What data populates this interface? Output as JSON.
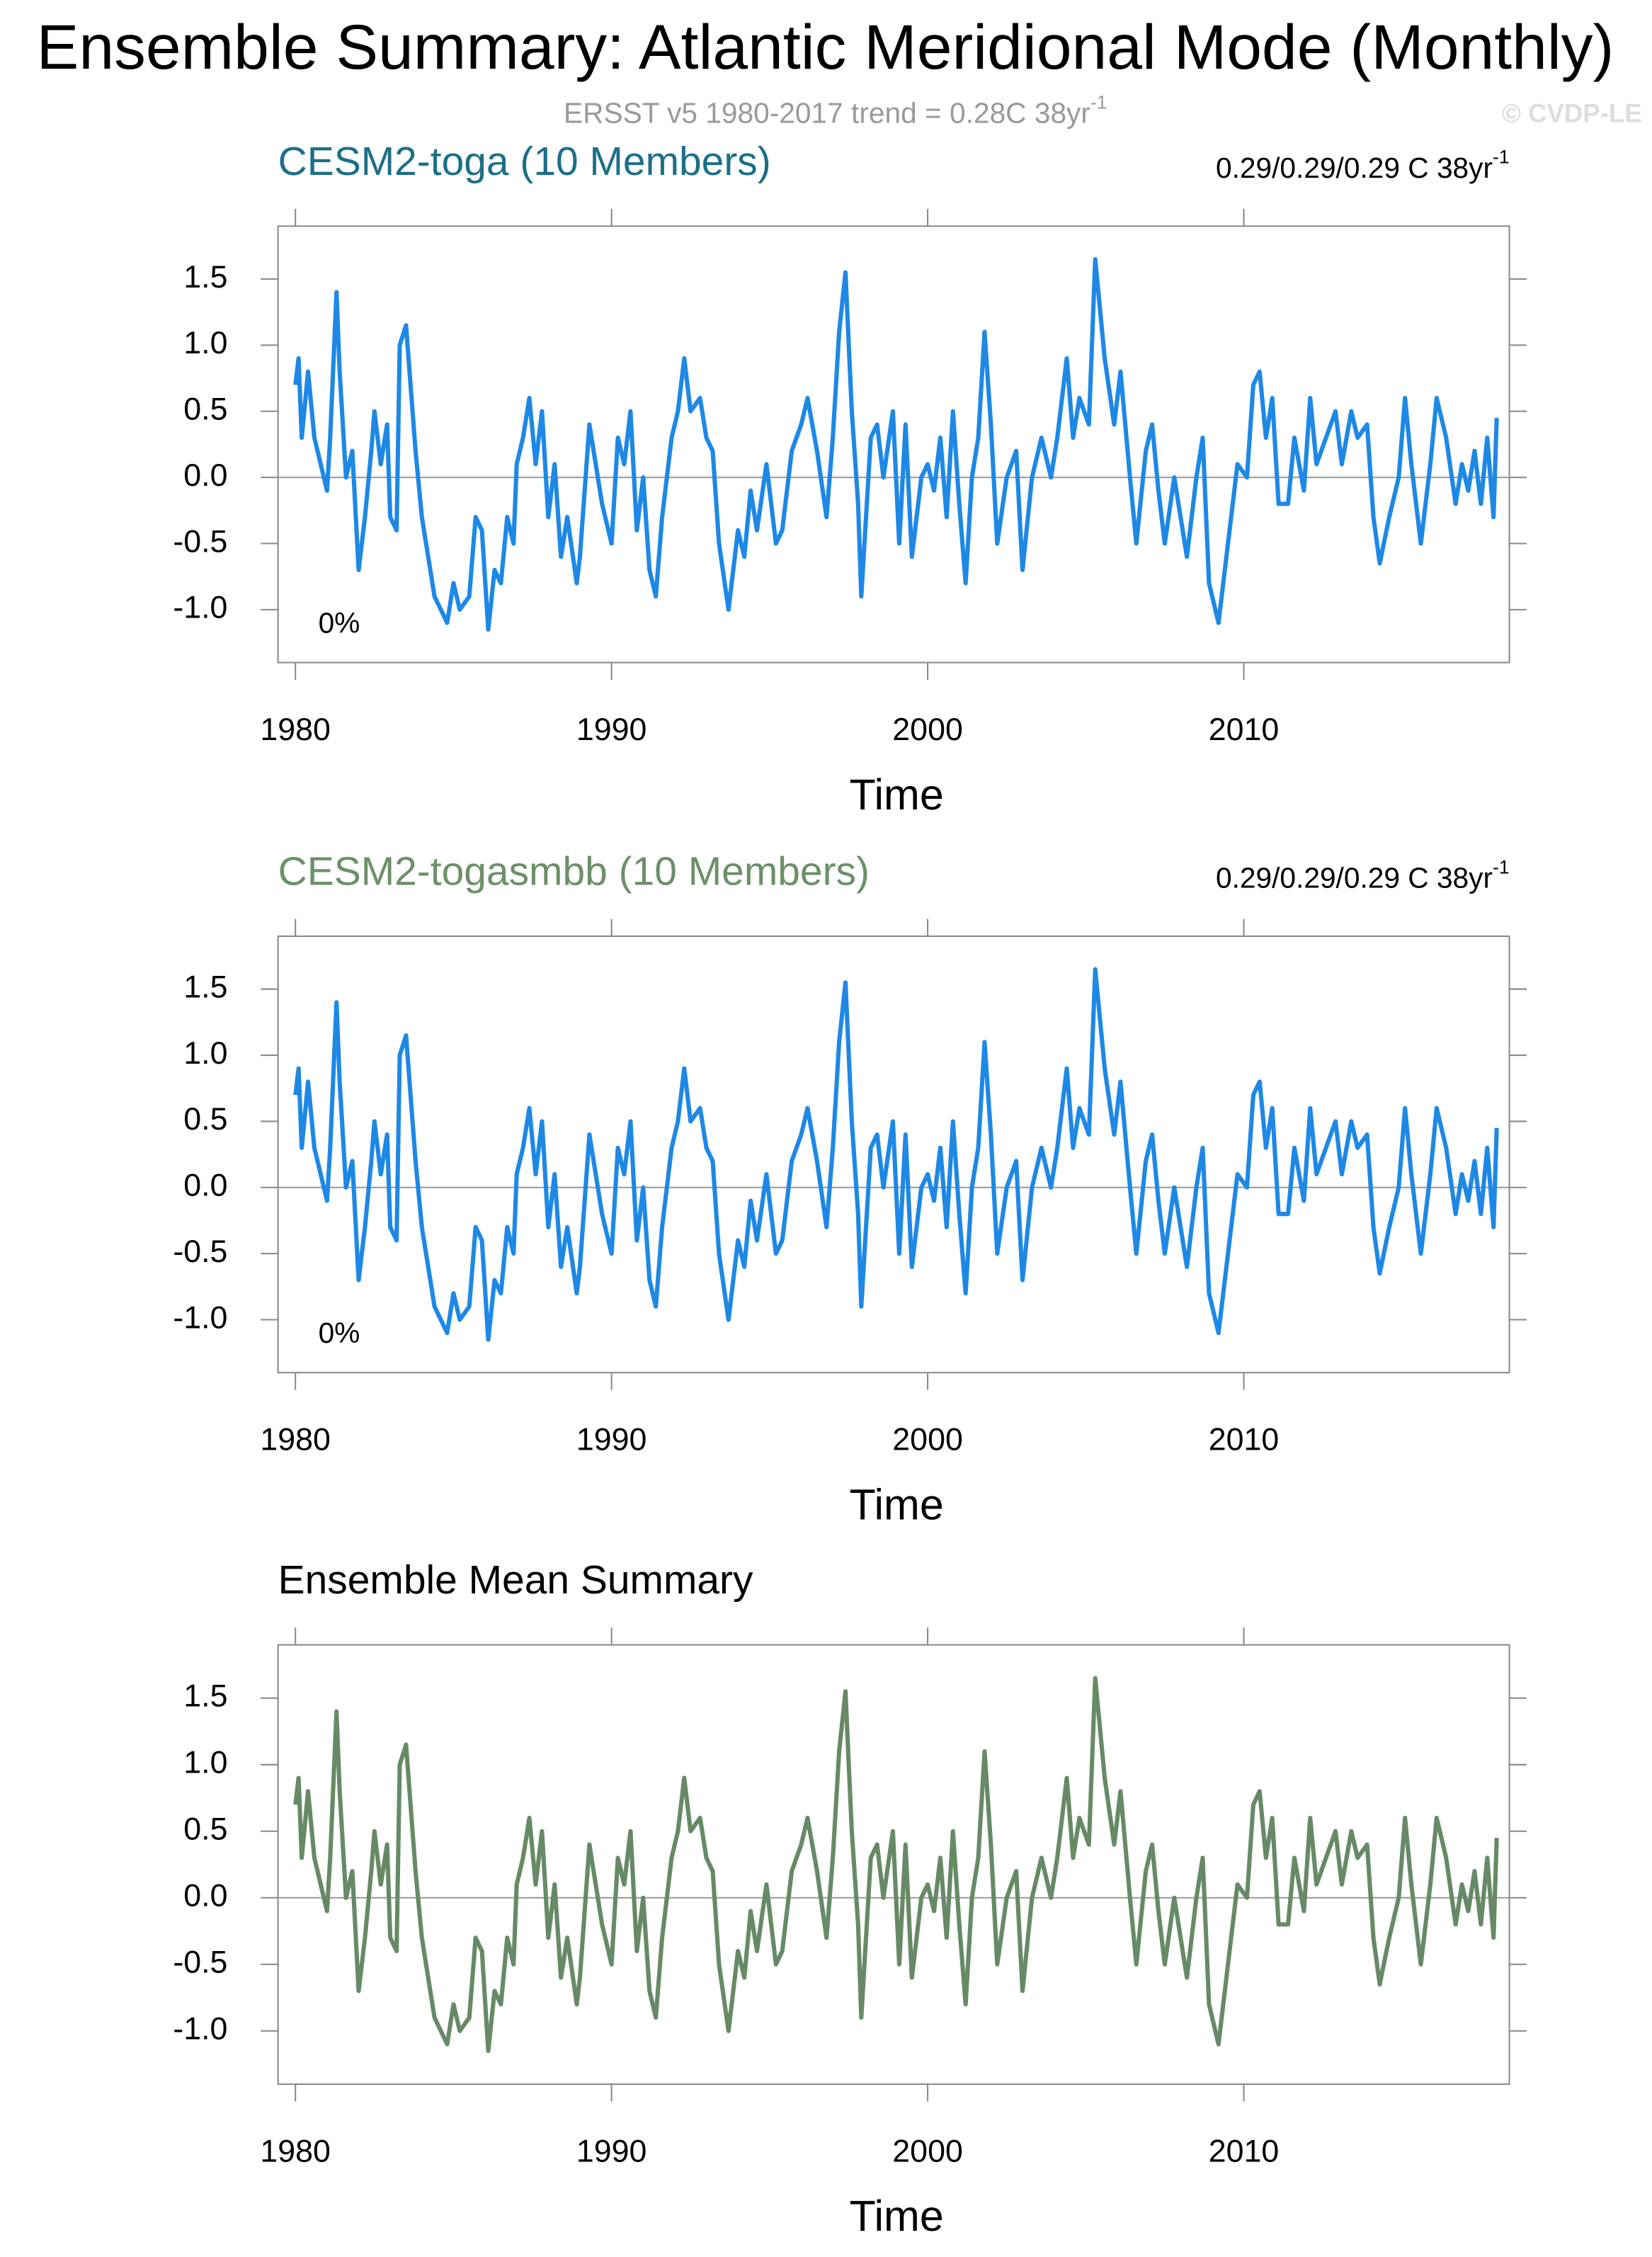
{
  "title": "Ensemble Summary: Atlantic Meridional Mode (Monthly)",
  "subtitle": {
    "text": "ERSST v5 1980-2017 trend = 0.28C 38yr",
    "sup": "-1"
  },
  "watermark": "© CVDP-LE",
  "chart_data": [
    {
      "type": "line",
      "title": "CESM2-toga (10 Members)",
      "title_color": "#1b6f88",
      "trend": {
        "text": "0.29/0.29/0.29 C 38yr",
        "sup": "-1"
      },
      "annotation": "0%",
      "x_label": "Time",
      "color": "#1e88e5",
      "reference_line": 0,
      "xlim": [
        1979.45,
        2018.4
      ],
      "xticks": [
        1980,
        1990,
        2000,
        2010
      ],
      "ylim": [
        -1.4,
        1.9
      ],
      "yticks": [
        {
          "value": -1,
          "label": "-1.0"
        },
        -0.5,
        {
          "value": 0,
          "label": "0.0"
        },
        0.5,
        {
          "value": 1,
          "label": "1.0"
        },
        1.5
      ],
      "x": [
        1980.0,
        1980.1,
        1980.2,
        1980.4,
        1980.6,
        1980.8,
        1981.0,
        1981.1,
        1981.3,
        1981.4,
        1981.6,
        1981.8,
        1982.0,
        1982.2,
        1982.4,
        1982.5,
        1982.7,
        1982.9,
        1983.0,
        1983.2,
        1983.3,
        1983.5,
        1983.8,
        1984.0,
        1984.2,
        1984.4,
        1984.6,
        1984.8,
        1985.0,
        1985.2,
        1985.5,
        1985.7,
        1985.9,
        1986.1,
        1986.3,
        1986.5,
        1986.7,
        1986.9,
        1987.0,
        1987.2,
        1987.4,
        1987.6,
        1987.8,
        1988.0,
        1988.2,
        1988.4,
        1988.6,
        1988.9,
        1989.0,
        1989.3,
        1989.5,
        1989.7,
        1990.0,
        1990.2,
        1990.4,
        1990.6,
        1990.8,
        1991.0,
        1991.2,
        1991.4,
        1991.6,
        1991.9,
        1992.1,
        1992.3,
        1992.5,
        1992.8,
        1993.0,
        1993.2,
        1993.4,
        1993.7,
        1994.0,
        1994.2,
        1994.4,
        1994.6,
        1994.9,
        1995.2,
        1995.4,
        1995.7,
        1996.0,
        1996.2,
        1996.5,
        1996.8,
        1997.0,
        1997.2,
        1997.4,
        1997.6,
        1997.8,
        1997.9,
        1998.2,
        1998.4,
        1998.6,
        1998.9,
        1999.1,
        1999.3,
        1999.5,
        1999.8,
        2000.0,
        2000.2,
        2000.4,
        2000.6,
        2000.8,
        2001.0,
        2001.2,
        2001.4,
        2001.6,
        2001.8,
        2002.0,
        2002.2,
        2002.5,
        2002.8,
        2003.0,
        2003.3,
        2003.6,
        2003.9,
        2004.1,
        2004.4,
        2004.6,
        2004.8,
        2005.1,
        2005.3,
        2005.6,
        2005.9,
        2006.1,
        2006.4,
        2006.6,
        2006.9,
        2007.1,
        2007.3,
        2007.5,
        2007.8,
        2008.0,
        2008.2,
        2008.5,
        2008.7,
        2008.9,
        2009.2,
        2009.5,
        2009.8,
        2010.1,
        2010.3,
        2010.5,
        2010.7,
        2010.9,
        2011.1,
        2011.4,
        2011.6,
        2011.9,
        2012.1,
        2012.3,
        2012.6,
        2012.9,
        2013.1,
        2013.4,
        2013.6,
        2013.9,
        2014.1,
        2014.3,
        2014.6,
        2014.9,
        2015.1,
        2015.3,
        2015.6,
        2015.9,
        2016.1,
        2016.4,
        2016.7,
        2016.9,
        2017.1,
        2017.3,
        2017.5,
        2017.7,
        2017.9,
        2018.0
      ],
      "values": [
        0.7,
        0.9,
        0.3,
        0.8,
        0.3,
        0.1,
        -0.1,
        0.3,
        1.4,
        0.8,
        0,
        0.2,
        -0.7,
        -0.3,
        0.2,
        0.5,
        0.1,
        0.4,
        -0.3,
        -0.4,
        1.0,
        1.15,
        0.2,
        -0.3,
        -0.6,
        -0.9,
        -1.0,
        -1.1,
        -0.8,
        -1.0,
        -0.9,
        -0.3,
        -0.4,
        -1.15,
        -0.7,
        -0.8,
        -0.3,
        -0.5,
        0.1,
        0.3,
        0.6,
        0.1,
        0.5,
        -0.3,
        0.1,
        -0.6,
        -0.3,
        -0.8,
        -0.6,
        0.4,
        0.1,
        -0.2,
        -0.5,
        0.3,
        0.1,
        0.5,
        -0.4,
        0,
        -0.7,
        -0.9,
        -0.3,
        0.3,
        0.5,
        0.9,
        0.5,
        0.6,
        0.3,
        0.2,
        -0.5,
        -1.0,
        -0.4,
        -0.6,
        -0.1,
        -0.4,
        0.1,
        -0.5,
        -0.4,
        0.2,
        0.4,
        0.6,
        0.2,
        -0.3,
        0.3,
        1.1,
        1.55,
        0.5,
        -0.2,
        -0.9,
        0.3,
        0.4,
        0,
        0.5,
        -0.5,
        0.4,
        -0.6,
        0,
        0.1,
        -0.1,
        0.3,
        -0.3,
        0.5,
        -0.2,
        -0.8,
        0,
        0.3,
        1.1,
        0.4,
        -0.5,
        0,
        0.2,
        -0.7,
        0,
        0.3,
        0,
        0.3,
        0.9,
        0.3,
        0.6,
        0.4,
        1.65,
        0.9,
        0.4,
        0.8,
        0,
        -0.5,
        0.2,
        0.4,
        -0.1,
        -0.5,
        0,
        -0.3,
        -0.6,
        0,
        0.3,
        -0.8,
        -1.1,
        -0.5,
        0.1,
        0,
        0.7,
        0.8,
        0.3,
        0.6,
        -0.2,
        -0.2,
        0.3,
        -0.1,
        0.6,
        0.1,
        0.3,
        0.5,
        0.1,
        0.5,
        0.3,
        0.4,
        -0.3,
        -0.65,
        -0.3,
        0,
        0.6,
        0.1,
        -0.5,
        0.1,
        0.6,
        0.3,
        -0.2,
        0.1,
        -0.1,
        0.2,
        -0.2,
        0.3,
        -0.3,
        0.45
      ]
    },
    {
      "type": "line",
      "title": "CESM2-togasmbb (10 Members)",
      "title_color": "#6c9068",
      "trend": {
        "text": "0.29/0.29/0.29 C 38yr",
        "sup": "-1"
      },
      "annotation": "0%",
      "x_label": "Time",
      "color": "#1e88e5",
      "reference_line": 0,
      "xlim": [
        1979.45,
        2018.4
      ],
      "xticks": [
        1980,
        1990,
        2000,
        2010
      ],
      "ylim": [
        -1.4,
        1.9
      ],
      "yticks": [
        {
          "value": -1,
          "label": "-1.0"
        },
        -0.5,
        {
          "value": 0,
          "label": "0.0"
        },
        0.5,
        {
          "value": 1,
          "label": "1.0"
        },
        1.5
      ],
      "x": [
        1980.0,
        1980.1,
        1980.2,
        1980.4,
        1980.6,
        1980.8,
        1981.0,
        1981.1,
        1981.3,
        1981.4,
        1981.6,
        1981.8,
        1982.0,
        1982.2,
        1982.4,
        1982.5,
        1982.7,
        1982.9,
        1983.0,
        1983.2,
        1983.3,
        1983.5,
        1983.8,
        1984.0,
        1984.2,
        1984.4,
        1984.6,
        1984.8,
        1985.0,
        1985.2,
        1985.5,
        1985.7,
        1985.9,
        1986.1,
        1986.3,
        1986.5,
        1986.7,
        1986.9,
        1987.0,
        1987.2,
        1987.4,
        1987.6,
        1987.8,
        1988.0,
        1988.2,
        1988.4,
        1988.6,
        1988.9,
        1989.0,
        1989.3,
        1989.5,
        1989.7,
        1990.0,
        1990.2,
        1990.4,
        1990.6,
        1990.8,
        1991.0,
        1991.2,
        1991.4,
        1991.6,
        1991.9,
        1992.1,
        1992.3,
        1992.5,
        1992.8,
        1993.0,
        1993.2,
        1993.4,
        1993.7,
        1994.0,
        1994.2,
        1994.4,
        1994.6,
        1994.9,
        1995.2,
        1995.4,
        1995.7,
        1996.0,
        1996.2,
        1996.5,
        1996.8,
        1997.0,
        1997.2,
        1997.4,
        1997.6,
        1997.8,
        1997.9,
        1998.2,
        1998.4,
        1998.6,
        1998.9,
        1999.1,
        1999.3,
        1999.5,
        1999.8,
        2000.0,
        2000.2,
        2000.4,
        2000.6,
        2000.8,
        2001.0,
        2001.2,
        2001.4,
        2001.6,
        2001.8,
        2002.0,
        2002.2,
        2002.5,
        2002.8,
        2003.0,
        2003.3,
        2003.6,
        2003.9,
        2004.1,
        2004.4,
        2004.6,
        2004.8,
        2005.1,
        2005.3,
        2005.6,
        2005.9,
        2006.1,
        2006.4,
        2006.6,
        2006.9,
        2007.1,
        2007.3,
        2007.5,
        2007.8,
        2008.0,
        2008.2,
        2008.5,
        2008.7,
        2008.9,
        2009.2,
        2009.5,
        2009.8,
        2010.1,
        2010.3,
        2010.5,
        2010.7,
        2010.9,
        2011.1,
        2011.4,
        2011.6,
        2011.9,
        2012.1,
        2012.3,
        2012.6,
        2012.9,
        2013.1,
        2013.4,
        2013.6,
        2013.9,
        2014.1,
        2014.3,
        2014.6,
        2014.9,
        2015.1,
        2015.3,
        2015.6,
        2015.9,
        2016.1,
        2016.4,
        2016.7,
        2016.9,
        2017.1,
        2017.3,
        2017.5,
        2017.7,
        2017.9,
        2018.0
      ],
      "values": [
        0.7,
        0.9,
        0.3,
        0.8,
        0.3,
        0.1,
        -0.1,
        0.3,
        1.4,
        0.8,
        0,
        0.2,
        -0.7,
        -0.3,
        0.2,
        0.5,
        0.1,
        0.4,
        -0.3,
        -0.4,
        1.0,
        1.15,
        0.2,
        -0.3,
        -0.6,
        -0.9,
        -1.0,
        -1.1,
        -0.8,
        -1.0,
        -0.9,
        -0.3,
        -0.4,
        -1.15,
        -0.7,
        -0.8,
        -0.3,
        -0.5,
        0.1,
        0.3,
        0.6,
        0.1,
        0.5,
        -0.3,
        0.1,
        -0.6,
        -0.3,
        -0.8,
        -0.6,
        0.4,
        0.1,
        -0.2,
        -0.5,
        0.3,
        0.1,
        0.5,
        -0.4,
        0,
        -0.7,
        -0.9,
        -0.3,
        0.3,
        0.5,
        0.9,
        0.5,
        0.6,
        0.3,
        0.2,
        -0.5,
        -1.0,
        -0.4,
        -0.6,
        -0.1,
        -0.4,
        0.1,
        -0.5,
        -0.4,
        0.2,
        0.4,
        0.6,
        0.2,
        -0.3,
        0.3,
        1.1,
        1.55,
        0.5,
        -0.2,
        -0.9,
        0.3,
        0.4,
        0,
        0.5,
        -0.5,
        0.4,
        -0.6,
        0,
        0.1,
        -0.1,
        0.3,
        -0.3,
        0.5,
        -0.2,
        -0.8,
        0,
        0.3,
        1.1,
        0.4,
        -0.5,
        0,
        0.2,
        -0.7,
        0,
        0.3,
        0,
        0.3,
        0.9,
        0.3,
        0.6,
        0.4,
        1.65,
        0.9,
        0.4,
        0.8,
        0,
        -0.5,
        0.2,
        0.4,
        -0.1,
        -0.5,
        0,
        -0.3,
        -0.6,
        0,
        0.3,
        -0.8,
        -1.1,
        -0.5,
        0.1,
        0,
        0.7,
        0.8,
        0.3,
        0.6,
        -0.2,
        -0.2,
        0.3,
        -0.1,
        0.6,
        0.1,
        0.3,
        0.5,
        0.1,
        0.5,
        0.3,
        0.4,
        -0.3,
        -0.65,
        -0.3,
        0,
        0.6,
        0.1,
        -0.5,
        0.1,
        0.6,
        0.3,
        -0.2,
        0.1,
        -0.1,
        0.2,
        -0.2,
        0.3,
        -0.3,
        0.45
      ]
    },
    {
      "type": "line",
      "title": "Ensemble Mean Summary",
      "title_color": "#000000",
      "x_label": "Time",
      "color": "#678a66",
      "reference_line": 0,
      "xlim": [
        1979.45,
        2018.4
      ],
      "xticks": [
        1980,
        1990,
        2000,
        2010
      ],
      "ylim": [
        -1.4,
        1.9
      ],
      "yticks": [
        {
          "value": -1,
          "label": "-1.0"
        },
        -0.5,
        {
          "value": 0,
          "label": "0.0"
        },
        0.5,
        {
          "value": 1,
          "label": "1.0"
        },
        1.5
      ],
      "x": [
        1980.0,
        1980.1,
        1980.2,
        1980.4,
        1980.6,
        1980.8,
        1981.0,
        1981.1,
        1981.3,
        1981.4,
        1981.6,
        1981.8,
        1982.0,
        1982.2,
        1982.4,
        1982.5,
        1982.7,
        1982.9,
        1983.0,
        1983.2,
        1983.3,
        1983.5,
        1983.8,
        1984.0,
        1984.2,
        1984.4,
        1984.6,
        1984.8,
        1985.0,
        1985.2,
        1985.5,
        1985.7,
        1985.9,
        1986.1,
        1986.3,
        1986.5,
        1986.7,
        1986.9,
        1987.0,
        1987.2,
        1987.4,
        1987.6,
        1987.8,
        1988.0,
        1988.2,
        1988.4,
        1988.6,
        1988.9,
        1989.0,
        1989.3,
        1989.5,
        1989.7,
        1990.0,
        1990.2,
        1990.4,
        1990.6,
        1990.8,
        1991.0,
        1991.2,
        1991.4,
        1991.6,
        1991.9,
        1992.1,
        1992.3,
        1992.5,
        1992.8,
        1993.0,
        1993.2,
        1993.4,
        1993.7,
        1994.0,
        1994.2,
        1994.4,
        1994.6,
        1994.9,
        1995.2,
        1995.4,
        1995.7,
        1996.0,
        1996.2,
        1996.5,
        1996.8,
        1997.0,
        1997.2,
        1997.4,
        1997.6,
        1997.8,
        1997.9,
        1998.2,
        1998.4,
        1998.6,
        1998.9,
        1999.1,
        1999.3,
        1999.5,
        1999.8,
        2000.0,
        2000.2,
        2000.4,
        2000.6,
        2000.8,
        2001.0,
        2001.2,
        2001.4,
        2001.6,
        2001.8,
        2002.0,
        2002.2,
        2002.5,
        2002.8,
        2003.0,
        2003.3,
        2003.6,
        2003.9,
        2004.1,
        2004.4,
        2004.6,
        2004.8,
        2005.1,
        2005.3,
        2005.6,
        2005.9,
        2006.1,
        2006.4,
        2006.6,
        2006.9,
        2007.1,
        2007.3,
        2007.5,
        2007.8,
        2008.0,
        2008.2,
        2008.5,
        2008.7,
        2008.9,
        2009.2,
        2009.5,
        2009.8,
        2010.1,
        2010.3,
        2010.5,
        2010.7,
        2010.9,
        2011.1,
        2011.4,
        2011.6,
        2011.9,
        2012.1,
        2012.3,
        2012.6,
        2012.9,
        2013.1,
        2013.4,
        2013.6,
        2013.9,
        2014.1,
        2014.3,
        2014.6,
        2014.9,
        2015.1,
        2015.3,
        2015.6,
        2015.9,
        2016.1,
        2016.4,
        2016.7,
        2016.9,
        2017.1,
        2017.3,
        2017.5,
        2017.7,
        2017.9,
        2018.0
      ],
      "values": [
        0.7,
        0.9,
        0.3,
        0.8,
        0.3,
        0.1,
        -0.1,
        0.3,
        1.4,
        0.8,
        0,
        0.2,
        -0.7,
        -0.3,
        0.2,
        0.5,
        0.1,
        0.4,
        -0.3,
        -0.4,
        1.0,
        1.15,
        0.2,
        -0.3,
        -0.6,
        -0.9,
        -1.0,
        -1.1,
        -0.8,
        -1.0,
        -0.9,
        -0.3,
        -0.4,
        -1.15,
        -0.7,
        -0.8,
        -0.3,
        -0.5,
        0.1,
        0.3,
        0.6,
        0.1,
        0.5,
        -0.3,
        0.1,
        -0.6,
        -0.3,
        -0.8,
        -0.6,
        0.4,
        0.1,
        -0.2,
        -0.5,
        0.3,
        0.1,
        0.5,
        -0.4,
        0,
        -0.7,
        -0.9,
        -0.3,
        0.3,
        0.5,
        0.9,
        0.5,
        0.6,
        0.3,
        0.2,
        -0.5,
        -1.0,
        -0.4,
        -0.6,
        -0.1,
        -0.4,
        0.1,
        -0.5,
        -0.4,
        0.2,
        0.4,
        0.6,
        0.2,
        -0.3,
        0.3,
        1.1,
        1.55,
        0.5,
        -0.2,
        -0.9,
        0.3,
        0.4,
        0,
        0.5,
        -0.5,
        0.4,
        -0.6,
        0,
        0.1,
        -0.1,
        0.3,
        -0.3,
        0.5,
        -0.2,
        -0.8,
        0,
        0.3,
        1.1,
        0.4,
        -0.5,
        0,
        0.2,
        -0.7,
        0,
        0.3,
        0,
        0.3,
        0.9,
        0.3,
        0.6,
        0.4,
        1.65,
        0.9,
        0.4,
        0.8,
        0,
        -0.5,
        0.2,
        0.4,
        -0.1,
        -0.5,
        0,
        -0.3,
        -0.6,
        0,
        0.3,
        -0.8,
        -1.1,
        -0.5,
        0.1,
        0,
        0.7,
        0.8,
        0.3,
        0.6,
        -0.2,
        -0.2,
        0.3,
        -0.1,
        0.6,
        0.1,
        0.3,
        0.5,
        0.1,
        0.5,
        0.3,
        0.4,
        -0.3,
        -0.65,
        -0.3,
        0,
        0.6,
        0.1,
        -0.5,
        0.1,
        0.6,
        0.3,
        -0.2,
        0.1,
        -0.1,
        0.2,
        -0.2,
        0.3,
        -0.3,
        0.45
      ]
    }
  ]
}
